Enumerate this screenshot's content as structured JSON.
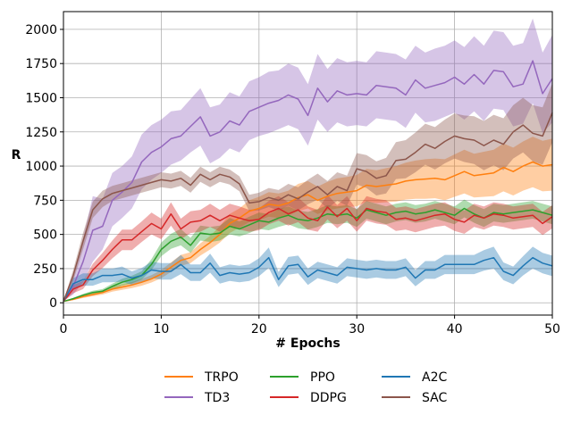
{
  "chart_data": {
    "type": "line",
    "xlabel": "# Epochs",
    "ylabel": "R",
    "xlim": [
      0,
      50
    ],
    "ylim": [
      -90,
      2130
    ],
    "xticks": [
      0,
      10,
      20,
      30,
      40,
      50
    ],
    "yticks": [
      0,
      250,
      500,
      750,
      1000,
      1250,
      1500,
      1750,
      2000
    ],
    "grid": true,
    "legend_position": "bottom-center",
    "bands": "shaded region around each line (spread across runs)",
    "x": [
      0,
      1,
      2,
      3,
      4,
      5,
      6,
      7,
      8,
      9,
      10,
      11,
      12,
      13,
      14,
      15,
      16,
      17,
      18,
      19,
      20,
      21,
      22,
      23,
      24,
      25,
      26,
      27,
      28,
      29,
      30,
      31,
      32,
      33,
      34,
      35,
      36,
      37,
      38,
      39,
      40,
      41,
      42,
      43,
      44,
      45,
      46,
      47,
      48,
      49,
      50
    ],
    "series": [
      {
        "name": "TRPO",
        "color": "#ff7f0e",
        "values": [
          10,
          25,
          45,
          60,
          75,
          100,
          115,
          130,
          150,
          175,
          210,
          260,
          310,
          330,
          390,
          440,
          500,
          580,
          620,
          670,
          690,
          720,
          710,
          730,
          770,
          790,
          750,
          780,
          800,
          810,
          820,
          860,
          850,
          860,
          870,
          890,
          900,
          905,
          910,
          900,
          930,
          960,
          930,
          940,
          950,
          990,
          960,
          1000,
          1030,
          1000,
          1010
        ],
        "lower": [
          10,
          20,
          35,
          48,
          60,
          82,
          95,
          108,
          125,
          148,
          180,
          225,
          270,
          290,
          345,
          390,
          440,
          510,
          550,
          590,
          605,
          630,
          620,
          640,
          670,
          690,
          650,
          675,
          690,
          700,
          705,
          740,
          730,
          735,
          740,
          755,
          760,
          760,
          765,
          750,
          775,
          800,
          770,
          775,
          780,
          815,
          785,
          820,
          845,
          815,
          820
        ],
        "upper": [
          10,
          30,
          55,
          72,
          90,
          118,
          135,
          152,
          175,
          202,
          240,
          295,
          350,
          370,
          435,
          490,
          560,
          650,
          690,
          750,
          775,
          810,
          800,
          820,
          870,
          890,
          850,
          885,
          910,
          920,
          935,
          980,
          970,
          985,
          1000,
          1025,
          1040,
          1050,
          1055,
          1050,
          1085,
          1120,
          1090,
          1105,
          1120,
          1165,
          1135,
          1180,
          1215,
          1185,
          1200
        ]
      },
      {
        "name": "TD3",
        "color": "#9467bd",
        "values": [
          20,
          120,
          300,
          530,
          560,
          750,
          810,
          880,
          1030,
          1100,
          1140,
          1200,
          1220,
          1290,
          1360,
          1220,
          1250,
          1330,
          1300,
          1400,
          1430,
          1460,
          1480,
          1520,
          1490,
          1370,
          1570,
          1470,
          1550,
          1520,
          1530,
          1520,
          1590,
          1580,
          1570,
          1520,
          1630,
          1570,
          1590,
          1610,
          1650,
          1600,
          1670,
          1600,
          1700,
          1690,
          1580,
          1600,
          1770,
          1530,
          1640
        ],
        "lower": [
          15,
          60,
          150,
          300,
          390,
          560,
          620,
          690,
          830,
          900,
          950,
          1010,
          1040,
          1100,
          1150,
          1020,
          1060,
          1130,
          1100,
          1190,
          1220,
          1240,
          1270,
          1300,
          1270,
          1150,
          1340,
          1250,
          1320,
          1290,
          1300,
          1290,
          1350,
          1340,
          1330,
          1280,
          1390,
          1320,
          1330,
          1360,
          1390,
          1340,
          1400,
          1330,
          1420,
          1410,
          1290,
          1310,
          1460,
          1240,
          1320
        ],
        "upper": [
          25,
          200,
          470,
          780,
          760,
          950,
          1000,
          1070,
          1230,
          1300,
          1340,
          1400,
          1410,
          1490,
          1570,
          1430,
          1450,
          1540,
          1510,
          1620,
          1650,
          1690,
          1700,
          1750,
          1720,
          1600,
          1820,
          1710,
          1790,
          1760,
          1770,
          1760,
          1840,
          1830,
          1820,
          1780,
          1880,
          1830,
          1860,
          1880,
          1920,
          1870,
          1950,
          1880,
          1990,
          1980,
          1880,
          1900,
          2080,
          1830,
          1960
        ]
      },
      {
        "name": "PPO",
        "color": "#2ca02c",
        "values": [
          10,
          30,
          55,
          75,
          85,
          120,
          150,
          170,
          200,
          280,
          390,
          450,
          480,
          420,
          510,
          500,
          510,
          560,
          540,
          570,
          600,
          590,
          620,
          640,
          610,
          600,
          620,
          650,
          640,
          650,
          620,
          680,
          660,
          640,
          660,
          670,
          650,
          660,
          680,
          660,
          640,
          690,
          650,
          620,
          660,
          650,
          660,
          670,
          680,
          660,
          640
        ],
        "lower": [
          10,
          24,
          45,
          62,
          70,
          100,
          125,
          142,
          170,
          240,
          340,
          395,
          420,
          365,
          455,
          445,
          455,
          500,
          485,
          510,
          540,
          530,
          555,
          575,
          545,
          535,
          555,
          585,
          575,
          585,
          555,
          615,
          595,
          575,
          595,
          605,
          585,
          595,
          615,
          595,
          575,
          625,
          585,
          555,
          595,
          585,
          595,
          605,
          615,
          595,
          575
        ],
        "upper": [
          10,
          36,
          65,
          88,
          100,
          140,
          175,
          198,
          230,
          320,
          440,
          505,
          540,
          475,
          565,
          555,
          565,
          620,
          595,
          630,
          660,
          650,
          685,
          705,
          675,
          665,
          685,
          715,
          705,
          715,
          685,
          745,
          725,
          705,
          725,
          735,
          715,
          725,
          745,
          725,
          705,
          755,
          715,
          685,
          725,
          715,
          725,
          735,
          745,
          725,
          705
        ]
      },
      {
        "name": "DDPG",
        "color": "#d62728",
        "values": [
          10,
          100,
          130,
          240,
          310,
          390,
          460,
          460,
          520,
          580,
          540,
          650,
          540,
          590,
          600,
          640,
          600,
          640,
          620,
          600,
          610,
          660,
          690,
          650,
          680,
          620,
          600,
          700,
          630,
          690,
          600,
          690,
          670,
          660,
          610,
          620,
          600,
          620,
          640,
          650,
          610,
          590,
          640,
          620,
          650,
          640,
          620,
          630,
          640,
          580,
          630
        ],
        "lower": [
          10,
          70,
          100,
          195,
          255,
          325,
          385,
          385,
          445,
          500,
          465,
          565,
          465,
          510,
          520,
          555,
          520,
          555,
          535,
          520,
          530,
          575,
          600,
          565,
          590,
          535,
          520,
          610,
          545,
          600,
          520,
          600,
          580,
          570,
          525,
          535,
          515,
          535,
          555,
          565,
          525,
          505,
          555,
          535,
          565,
          555,
          535,
          545,
          555,
          495,
          545
        ],
        "upper": [
          10,
          130,
          160,
          285,
          365,
          455,
          535,
          535,
          595,
          660,
          615,
          735,
          615,
          670,
          680,
          725,
          680,
          725,
          705,
          680,
          690,
          745,
          780,
          735,
          770,
          705,
          680,
          790,
          715,
          780,
          680,
          780,
          760,
          750,
          695,
          705,
          685,
          705,
          725,
          735,
          695,
          675,
          725,
          705,
          735,
          725,
          705,
          715,
          725,
          665,
          715
        ]
      },
      {
        "name": "A2C",
        "color": "#1f77b4",
        "values": [
          10,
          140,
          170,
          170,
          200,
          200,
          210,
          180,
          200,
          240,
          230,
          230,
          280,
          220,
          220,
          290,
          200,
          220,
          210,
          220,
          260,
          330,
          170,
          270,
          280,
          190,
          240,
          220,
          200,
          260,
          250,
          240,
          250,
          240,
          240,
          260,
          180,
          240,
          240,
          280,
          280,
          280,
          280,
          310,
          330,
          230,
          200,
          270,
          330,
          290,
          270
        ],
        "lower": [
          10,
          100,
          125,
          125,
          150,
          150,
          155,
          130,
          145,
          180,
          170,
          170,
          210,
          160,
          160,
          220,
          140,
          160,
          150,
          160,
          195,
          255,
          115,
          205,
          215,
          130,
          180,
          160,
          140,
          195,
          185,
          175,
          185,
          175,
          175,
          195,
          120,
          175,
          175,
          210,
          210,
          210,
          210,
          235,
          250,
          165,
          135,
          200,
          250,
          215,
          195
        ],
        "upper": [
          10,
          180,
          215,
          215,
          250,
          250,
          265,
          230,
          255,
          300,
          290,
          290,
          350,
          280,
          280,
          360,
          260,
          280,
          270,
          280,
          325,
          405,
          225,
          335,
          345,
          250,
          300,
          280,
          260,
          325,
          315,
          305,
          315,
          305,
          305,
          325,
          240,
          305,
          305,
          350,
          350,
          350,
          350,
          385,
          410,
          295,
          265,
          340,
          410,
          365,
          345
        ]
      },
      {
        "name": "SAC",
        "color": "#8c564b",
        "values": [
          10,
          200,
          450,
          680,
          760,
          800,
          820,
          840,
          860,
          880,
          900,
          890,
          910,
          860,
          940,
          900,
          940,
          920,
          870,
          730,
          740,
          770,
          750,
          790,
          760,
          810,
          850,
          790,
          850,
          820,
          980,
          960,
          910,
          930,
          1040,
          1050,
          1100,
          1160,
          1130,
          1180,
          1220,
          1200,
          1190,
          1150,
          1190,
          1160,
          1250,
          1300,
          1240,
          1220,
          1390
        ],
        "lower": [
          10,
          160,
          390,
          620,
          700,
          745,
          765,
          785,
          805,
          825,
          845,
          835,
          855,
          805,
          885,
          845,
          885,
          865,
          815,
          670,
          675,
          700,
          675,
          710,
          675,
          720,
          755,
          690,
          745,
          710,
          865,
          840,
          785,
          800,
          905,
          910,
          955,
          1010,
          975,
          1020,
          1055,
          1030,
          1015,
          970,
          1005,
          970,
          1055,
          1100,
          1035,
          1010,
          1175
        ],
        "upper": [
          10,
          240,
          510,
          740,
          820,
          855,
          875,
          895,
          915,
          935,
          955,
          945,
          965,
          915,
          995,
          955,
          995,
          975,
          925,
          790,
          805,
          840,
          825,
          870,
          845,
          900,
          945,
          890,
          955,
          930,
          1095,
          1080,
          1035,
          1060,
          1175,
          1190,
          1245,
          1310,
          1285,
          1340,
          1385,
          1370,
          1365,
          1330,
          1375,
          1350,
          1445,
          1500,
          1445,
          1430,
          1605
        ]
      }
    ]
  }
}
